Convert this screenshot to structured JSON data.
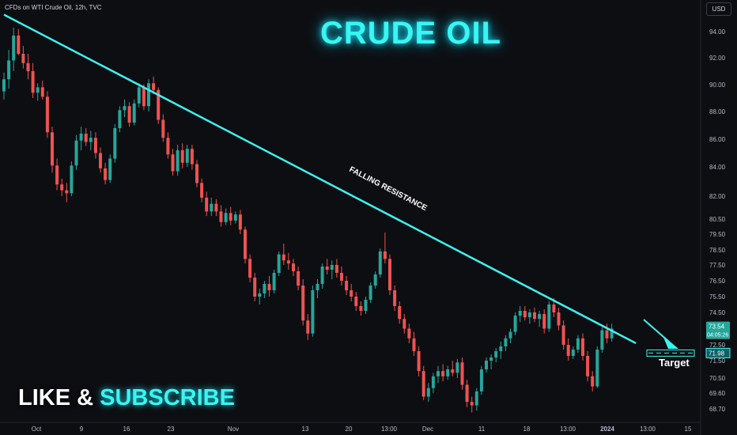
{
  "header": {
    "symbol_line": "CFDs on WTI Crude Oil, 12h, TVC",
    "currency": "USD"
  },
  "overlay": {
    "title": "CRUDE OIL",
    "like": "LIKE &",
    "subscribe": "SUBSCRIBE",
    "trendline_label": "FALLING RESISTANCE",
    "target_label": "Target"
  },
  "colors": {
    "background": "#0d0e12",
    "up": "#26a69a",
    "down": "#ef5350",
    "accent": "#39f6f2"
  },
  "price_box": {
    "last": "73.54",
    "countdown": "04:05:26",
    "target_level": "71.98"
  },
  "chart_data": {
    "type": "candlestick",
    "title": "CFDs on WTI Crude Oil, 12h, TVC",
    "y_axis": {
      "labels": [
        "94.00",
        "92.00",
        "90.00",
        "88.00",
        "86.00",
        "84.00",
        "82.00",
        "80.50",
        "79.50",
        "78.50",
        "77.50",
        "76.50",
        "75.50",
        "74.50",
        "72.50",
        "71.50",
        "70.50",
        "69.60",
        "68.70"
      ],
      "scale": "log",
      "range": [
        68.2,
        96.0
      ]
    },
    "x_axis": {
      "labels": [
        "Oct",
        "9",
        "16",
        "23",
        "Nov",
        "13",
        "20",
        "13:00",
        "Dec",
        "11",
        "18",
        "13:00",
        "2024",
        "13:00",
        "15"
      ]
    },
    "candles": [
      [
        89.5,
        90.9,
        88.9,
        90.4
      ],
      [
        90.4,
        92.6,
        89.7,
        91.8
      ],
      [
        91.8,
        94.3,
        91.0,
        93.7
      ],
      [
        93.7,
        94.2,
        92.2,
        92.3
      ],
      [
        92.3,
        92.9,
        91.2,
        91.6
      ],
      [
        91.6,
        92.3,
        90.4,
        91.0
      ],
      [
        91.0,
        91.6,
        89.0,
        89.4
      ],
      [
        89.4,
        90.1,
        88.8,
        89.8
      ],
      [
        89.8,
        90.3,
        88.9,
        89.1
      ],
      [
        89.1,
        89.5,
        86.1,
        86.5
      ],
      [
        86.5,
        86.9,
        83.6,
        84.1
      ],
      [
        84.1,
        84.6,
        82.4,
        82.8
      ],
      [
        82.8,
        83.2,
        82.0,
        82.4
      ],
      [
        82.4,
        82.9,
        81.6,
        82.2
      ],
      [
        82.2,
        84.4,
        82.0,
        84.1
      ],
      [
        84.1,
        86.3,
        83.8,
        85.9
      ],
      [
        85.9,
        86.9,
        85.2,
        86.4
      ],
      [
        86.4,
        86.8,
        85.5,
        85.8
      ],
      [
        85.8,
        86.6,
        85.2,
        86.1
      ],
      [
        86.1,
        86.5,
        84.6,
        85.0
      ],
      [
        85.0,
        85.4,
        83.6,
        83.9
      ],
      [
        83.9,
        84.3,
        82.8,
        83.1
      ],
      [
        83.1,
        84.9,
        82.9,
        84.6
      ],
      [
        84.6,
        87.1,
        84.3,
        86.8
      ],
      [
        86.8,
        88.4,
        86.5,
        88.1
      ],
      [
        88.1,
        88.9,
        87.6,
        88.4
      ],
      [
        88.4,
        88.7,
        86.9,
        87.2
      ],
      [
        87.2,
        88.9,
        87.0,
        88.6
      ],
      [
        88.6,
        90.1,
        88.3,
        89.8
      ],
      [
        89.8,
        90.0,
        88.1,
        88.4
      ],
      [
        88.4,
        90.4,
        88.0,
        90.1
      ],
      [
        90.1,
        90.6,
        89.3,
        89.6
      ],
      [
        89.6,
        89.8,
        87.1,
        87.4
      ],
      [
        87.4,
        87.8,
        85.8,
        86.1
      ],
      [
        86.1,
        86.5,
        84.6,
        84.9
      ],
      [
        84.9,
        85.3,
        83.4,
        83.7
      ],
      [
        83.7,
        85.6,
        83.4,
        85.2
      ],
      [
        85.2,
        85.7,
        83.9,
        84.3
      ],
      [
        84.3,
        85.6,
        84.0,
        85.3
      ],
      [
        85.3,
        85.6,
        83.8,
        84.2
      ],
      [
        84.2,
        84.5,
        82.6,
        82.9
      ],
      [
        82.9,
        83.2,
        81.6,
        81.9
      ],
      [
        81.9,
        82.3,
        80.7,
        81.0
      ],
      [
        81.0,
        81.9,
        80.7,
        81.5
      ],
      [
        81.5,
        81.8,
        80.7,
        81.0
      ],
      [
        81.0,
        81.4,
        80.0,
        80.3
      ],
      [
        80.3,
        81.2,
        80.1,
        80.9
      ],
      [
        80.9,
        81.3,
        80.1,
        80.4
      ],
      [
        80.4,
        81.0,
        80.2,
        80.8
      ],
      [
        80.8,
        81.1,
        79.5,
        79.8
      ],
      [
        79.8,
        80.0,
        77.6,
        77.9
      ],
      [
        77.9,
        78.2,
        76.4,
        76.7
      ],
      [
        76.7,
        77.0,
        75.2,
        75.5
      ],
      [
        75.5,
        76.0,
        75.0,
        75.7
      ],
      [
        75.7,
        76.5,
        75.4,
        76.3
      ],
      [
        76.3,
        76.8,
        75.5,
        75.9
      ],
      [
        75.9,
        77.2,
        75.7,
        77.0
      ],
      [
        77.0,
        78.4,
        76.8,
        78.2
      ],
      [
        78.2,
        78.9,
        77.5,
        77.8
      ],
      [
        77.8,
        78.3,
        77.2,
        77.6
      ],
      [
        77.6,
        77.9,
        76.8,
        77.1
      ],
      [
        77.1,
        77.4,
        75.9,
        76.2
      ],
      [
        76.2,
        76.6,
        73.7,
        74.0
      ],
      [
        74.0,
        74.4,
        72.8,
        73.2
      ],
      [
        73.2,
        76.2,
        73.0,
        75.9
      ],
      [
        75.9,
        76.6,
        75.4,
        76.3
      ],
      [
        76.3,
        77.6,
        76.0,
        77.4
      ],
      [
        77.4,
        77.9,
        76.9,
        77.2
      ],
      [
        77.2,
        77.8,
        76.6,
        77.5
      ],
      [
        77.5,
        77.9,
        76.7,
        77.0
      ],
      [
        77.0,
        77.4,
        76.2,
        76.5
      ],
      [
        76.5,
        76.8,
        75.6,
        75.9
      ],
      [
        75.9,
        76.3,
        75.2,
        75.5
      ],
      [
        75.5,
        75.8,
        74.6,
        74.9
      ],
      [
        74.9,
        75.2,
        74.3,
        74.6
      ],
      [
        74.6,
        75.5,
        74.4,
        75.3
      ],
      [
        75.3,
        76.4,
        75.1,
        76.2
      ],
      [
        76.2,
        77.1,
        76.0,
        76.9
      ],
      [
        76.9,
        78.6,
        76.7,
        78.4
      ],
      [
        78.4,
        79.6,
        77.6,
        77.9
      ],
      [
        77.9,
        78.2,
        75.6,
        75.9
      ],
      [
        75.9,
        76.2,
        74.6,
        74.9
      ],
      [
        74.9,
        75.2,
        73.8,
        74.1
      ],
      [
        74.1,
        74.4,
        73.2,
        73.5
      ],
      [
        73.5,
        73.8,
        72.6,
        72.9
      ],
      [
        72.9,
        73.3,
        71.8,
        72.1
      ],
      [
        72.1,
        72.4,
        70.6,
        70.9
      ],
      [
        70.9,
        71.2,
        69.2,
        69.4
      ],
      [
        69.4,
        70.2,
        69.1,
        69.9
      ],
      [
        69.9,
        70.8,
        69.6,
        70.6
      ],
      [
        70.6,
        71.2,
        70.2,
        70.9
      ],
      [
        70.9,
        71.3,
        70.3,
        70.6
      ],
      [
        70.6,
        71.2,
        70.4,
        71.0
      ],
      [
        71.0,
        71.5,
        70.6,
        70.8
      ],
      [
        70.8,
        71.6,
        70.5,
        71.4
      ],
      [
        71.4,
        71.7,
        69.8,
        70.1
      ],
      [
        70.1,
        70.4,
        68.8,
        69.1
      ],
      [
        69.1,
        69.4,
        68.5,
        68.9
      ],
      [
        68.9,
        69.9,
        68.6,
        69.7
      ],
      [
        69.7,
        71.2,
        69.5,
        71.0
      ],
      [
        71.0,
        71.7,
        70.8,
        71.5
      ],
      [
        71.5,
        71.9,
        71.0,
        71.7
      ],
      [
        71.7,
        72.3,
        71.4,
        72.1
      ],
      [
        72.1,
        72.7,
        71.6,
        72.4
      ],
      [
        72.4,
        73.1,
        72.1,
        72.9
      ],
      [
        72.9,
        73.5,
        72.6,
        73.3
      ],
      [
        73.3,
        74.5,
        73.1,
        74.3
      ],
      [
        74.3,
        74.9,
        73.9,
        74.6
      ],
      [
        74.6,
        74.9,
        74.0,
        74.2
      ],
      [
        74.2,
        74.7,
        73.8,
        74.5
      ],
      [
        74.5,
        74.8,
        73.9,
        74.1
      ],
      [
        74.1,
        74.6,
        73.6,
        74.4
      ],
      [
        74.4,
        74.7,
        73.2,
        73.5
      ],
      [
        73.5,
        75.2,
        73.3,
        75.0
      ],
      [
        75.0,
        75.4,
        74.2,
        74.5
      ],
      [
        74.5,
        74.8,
        73.4,
        73.7
      ],
      [
        73.7,
        74.0,
        72.2,
        72.5
      ],
      [
        72.5,
        72.9,
        71.5,
        71.8
      ],
      [
        71.8,
        72.4,
        71.6,
        72.2
      ],
      [
        72.2,
        73.1,
        72.0,
        72.9
      ],
      [
        72.9,
        73.2,
        71.5,
        71.8
      ],
      [
        71.8,
        72.1,
        70.3,
        70.6
      ],
      [
        70.6,
        70.9,
        69.7,
        70.0
      ],
      [
        70.0,
        72.4,
        69.9,
        72.2
      ],
      [
        72.2,
        73.6,
        72.0,
        73.4
      ],
      [
        73.4,
        73.8,
        72.6,
        72.9
      ],
      [
        72.9,
        73.8,
        72.7,
        73.5
      ]
    ],
    "annotations": [
      {
        "type": "trendline",
        "label": "FALLING RESISTANCE",
        "from": [
          0,
          95.3
        ],
        "to": [
          131,
          72.6
        ]
      },
      {
        "type": "target_box",
        "label": "Target",
        "level": 71.98
      }
    ]
  }
}
